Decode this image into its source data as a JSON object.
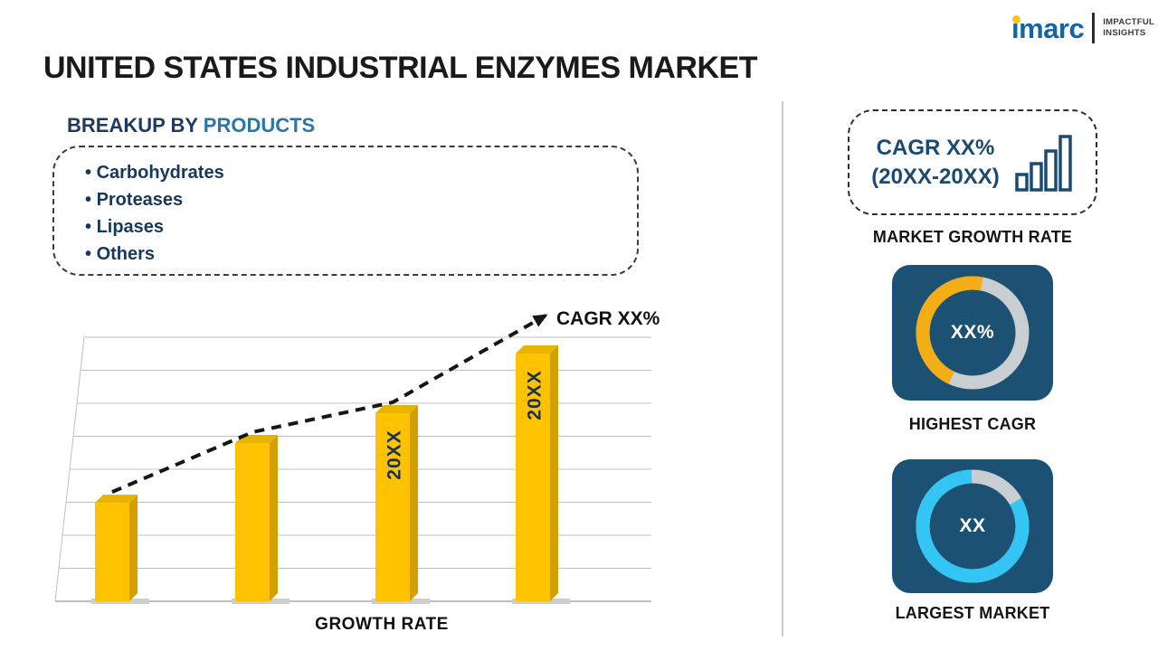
{
  "logo": {
    "brand": "imarc",
    "tagline1": "IMPACTFUL",
    "tagline2": "INSIGHTS"
  },
  "title": "UNITED STATES INDUSTRIAL ENZYMES MARKET",
  "breakup": {
    "heading_prefix": "BREAKUP BY ",
    "heading_accent": "PRODUCTS",
    "items": [
      "Carbohydrates",
      "Proteases",
      "Lipases",
      "Others"
    ]
  },
  "chart_data": [
    {
      "type": "bar",
      "bar_labels": [
        "",
        "",
        "20XX",
        "20XX"
      ],
      "values": [
        33,
        53,
        63,
        83
      ],
      "values_are_estimates": true,
      "ylim": [
        0,
        100
      ],
      "xlabel": "GROWTH RATE",
      "trend_annotation": "CAGR XX%",
      "grid": true,
      "bar_style": "3d-gold"
    },
    {
      "type": "donut",
      "title": "HIGHEST CAGR",
      "value_text": "XX%",
      "filled_fraction": 0.46,
      "color": "#F2AE14"
    },
    {
      "type": "donut",
      "title": "LARGEST MARKET",
      "value_text": "XX",
      "filled_fraction": 0.83,
      "color": "#33C5F3"
    }
  ],
  "right_panel": {
    "growth_box": {
      "line1": "CAGR XX%",
      "line2": "(20XX-20XX)"
    },
    "market_growth_label": "MARKET GROWTH RATE"
  },
  "colors": {
    "bar_face": "#FFC200",
    "bar_side": "#D29E00",
    "bar_top": "#E8B400",
    "accent_blue": "#2D74A8",
    "navy_text": "#17375D",
    "card_bg": "#1D5173",
    "donut_gray": "#C9CED2",
    "donut_yellow": "#F2AE14",
    "donut_cyan": "#33C5F3",
    "logo_blue": "#1464A8",
    "logo_yellow": "#FFC20E"
  }
}
